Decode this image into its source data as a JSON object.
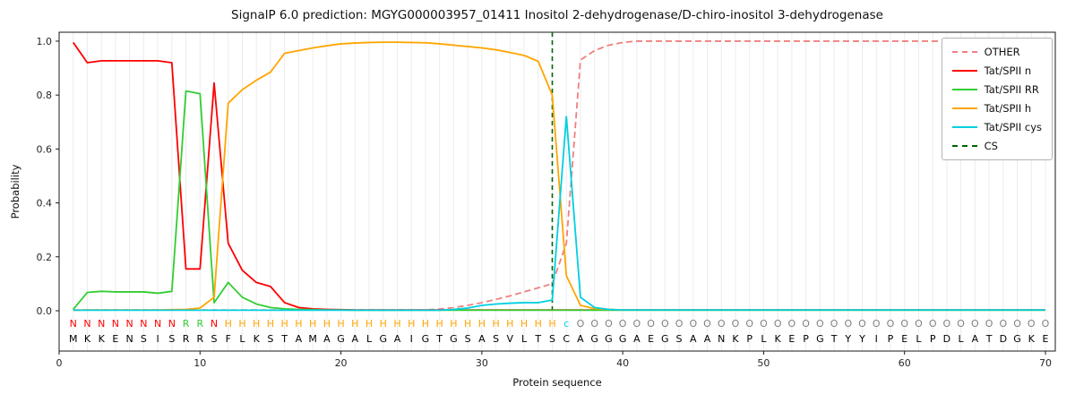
{
  "chart_data": {
    "type": "line",
    "title": "SignalP 6.0 prediction: MGYG000003957_01411 Inositol 2-dehydrogenase/D-chiro-inositol 3-dehydrogenase",
    "xlabel": "Protein sequence",
    "ylabel": "Probability",
    "xlim": [
      0,
      70.7
    ],
    "ylim": [
      -0.1495,
      1.033
    ],
    "x_ticks": [
      0,
      10,
      20,
      30,
      40,
      50,
      60,
      70
    ],
    "y_ticks": [
      0.0,
      0.2,
      0.4,
      0.6,
      0.8,
      1.0
    ],
    "grid": "vertical line per residue",
    "legend_position": "upper right",
    "positions": {
      "start": 1,
      "end": 70,
      "step": 1
    },
    "series": [
      {
        "name": "OTHER",
        "color": "#f08080",
        "dash": "dashed",
        "values": [
          0.003,
          0.003,
          0.003,
          0.003,
          0.003,
          0.003,
          0.003,
          0.003,
          0.003,
          0.003,
          0.003,
          0.003,
          0.003,
          0.003,
          0.003,
          0.003,
          0.003,
          0.003,
          0.003,
          0.003,
          0.003,
          0.003,
          0.003,
          0.003,
          0.003,
          0.003,
          0.006,
          0.012,
          0.02,
          0.03,
          0.042,
          0.055,
          0.07,
          0.085,
          0.1,
          0.25,
          0.93,
          0.965,
          0.985,
          0.995,
          1.0,
          1.0,
          1.0,
          1.0,
          1.0,
          1.0,
          1.0,
          1.0,
          1.0,
          1.0,
          1.0,
          1.0,
          1.0,
          1.0,
          1.0,
          1.0,
          1.0,
          1.0,
          1.0,
          1.0,
          1.0,
          1.0,
          1.0,
          1.0,
          1.0,
          1.0,
          1.0,
          1.0,
          1.0,
          1.0
        ]
      },
      {
        "name": "Tat/SPII n",
        "color": "#fe0000",
        "dash": "solid",
        "values": [
          0.995,
          0.92,
          0.927,
          0.927,
          0.927,
          0.927,
          0.927,
          0.92,
          0.155,
          0.155,
          0.845,
          0.25,
          0.15,
          0.105,
          0.09,
          0.03,
          0.012,
          0.007,
          0.005,
          0.004,
          0.003,
          0.003,
          0.003,
          0.003,
          0.003,
          0.003,
          0.003,
          0.003,
          0.003,
          0.003,
          0.003,
          0.003,
          0.003,
          0.003,
          0.003,
          0.003,
          0.003,
          0.003,
          0.003,
          0.003,
          0.003,
          0.003,
          0.003,
          0.003,
          0.003,
          0.003,
          0.003,
          0.003,
          0.003,
          0.003,
          0.003,
          0.003,
          0.003,
          0.003,
          0.003,
          0.003,
          0.003,
          0.003,
          0.003,
          0.003,
          0.003,
          0.003,
          0.003,
          0.003,
          0.003,
          0.003,
          0.003,
          0.003,
          0.003,
          0.003
        ]
      },
      {
        "name": "Tat/SPII RR",
        "color": "#32cd32",
        "dash": "solid",
        "values": [
          0.005,
          0.068,
          0.072,
          0.07,
          0.07,
          0.07,
          0.065,
          0.072,
          0.815,
          0.805,
          0.03,
          0.105,
          0.05,
          0.025,
          0.012,
          0.007,
          0.005,
          0.004,
          0.003,
          0.003,
          0.002,
          0.002,
          0.002,
          0.002,
          0.002,
          0.002,
          0.002,
          0.002,
          0.002,
          0.002,
          0.002,
          0.002,
          0.002,
          0.002,
          0.002,
          0.002,
          0.002,
          0.002,
          0.002,
          0.002,
          0.002,
          0.002,
          0.002,
          0.002,
          0.002,
          0.002,
          0.002,
          0.002,
          0.002,
          0.002,
          0.002,
          0.002,
          0.002,
          0.002,
          0.002,
          0.002,
          0.002,
          0.002,
          0.002,
          0.002,
          0.002,
          0.002,
          0.002,
          0.002,
          0.002,
          0.002,
          0.002,
          0.002,
          0.002,
          0.002
        ]
      },
      {
        "name": "Tat/SPII h",
        "color": "#ffa500",
        "dash": "solid",
        "values": [
          0.002,
          0.003,
          0.003,
          0.003,
          0.003,
          0.003,
          0.003,
          0.004,
          0.005,
          0.01,
          0.05,
          0.77,
          0.82,
          0.855,
          0.885,
          0.955,
          0.965,
          0.975,
          0.983,
          0.99,
          0.993,
          0.995,
          0.996,
          0.996,
          0.995,
          0.994,
          0.99,
          0.985,
          0.98,
          0.975,
          0.968,
          0.958,
          0.947,
          0.925,
          0.8,
          0.13,
          0.02,
          0.008,
          0.005,
          0.003,
          0.003,
          0.003,
          0.003,
          0.003,
          0.003,
          0.003,
          0.003,
          0.003,
          0.003,
          0.003,
          0.003,
          0.003,
          0.003,
          0.003,
          0.003,
          0.003,
          0.003,
          0.003,
          0.003,
          0.003,
          0.003,
          0.003,
          0.003,
          0.003,
          0.003,
          0.003,
          0.003,
          0.003,
          0.003,
          0.003
        ]
      },
      {
        "name": "Tat/SPII cys",
        "color": "#00cfe0",
        "dash": "solid",
        "values": [
          0.002,
          0.002,
          0.002,
          0.002,
          0.002,
          0.002,
          0.002,
          0.002,
          0.002,
          0.002,
          0.002,
          0.002,
          0.002,
          0.002,
          0.002,
          0.002,
          0.002,
          0.002,
          0.002,
          0.002,
          0.002,
          0.002,
          0.002,
          0.002,
          0.002,
          0.002,
          0.002,
          0.005,
          0.01,
          0.02,
          0.025,
          0.028,
          0.03,
          0.03,
          0.04,
          0.72,
          0.05,
          0.012,
          0.005,
          0.003,
          0.003,
          0.003,
          0.003,
          0.003,
          0.003,
          0.003,
          0.003,
          0.003,
          0.003,
          0.003,
          0.003,
          0.003,
          0.003,
          0.003,
          0.003,
          0.003,
          0.003,
          0.003,
          0.003,
          0.003,
          0.003,
          0.003,
          0.003,
          0.003,
          0.003,
          0.003,
          0.003,
          0.003,
          0.003,
          0.003
        ]
      }
    ],
    "cs_line": {
      "name": "CS",
      "x": 35,
      "color": "#006400",
      "dash": "dashed"
    },
    "sequence": "MKKENSISRRSFLKSTAMAGALGAIGTGSASVLTSCAGGGAEGSAANKPLKEPGTYYIPELPDLATDGKE",
    "region_labels": "NNNNNNNNRRNHHHHHHHHHHHHHHHHHHHHHHHHcOOOOOOOOOOOOOOOOOOOOOOOOOOOOOOOOOO",
    "region_colors": {
      "N": "#fe0000",
      "R": "#32cd32",
      "H": "#ffa500",
      "c": "#00cfe0",
      "O": "#808080"
    },
    "sequence_color": "#000000",
    "frame_color": "#1a1a1a",
    "grid_color": "#ececec"
  }
}
